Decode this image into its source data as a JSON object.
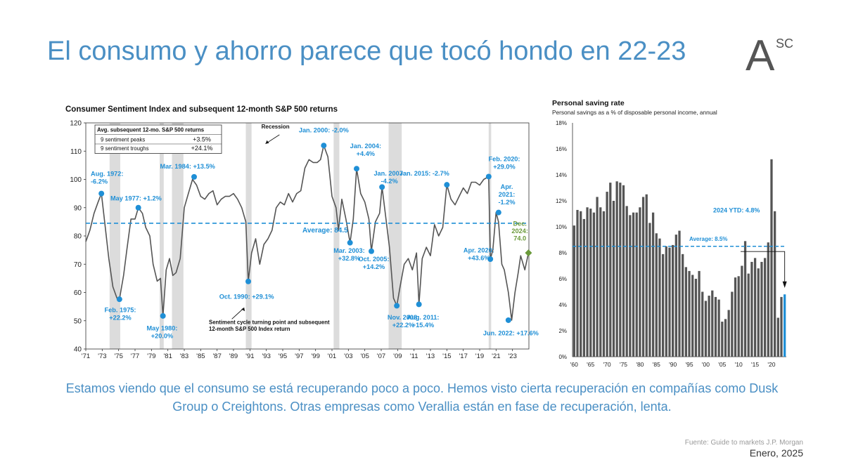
{
  "slide": {
    "title": "El consumo y ahorro parece que tocó hondo en 22-23",
    "logo": {
      "main": "A",
      "superscript": "SC"
    },
    "body": "Estamos viendo que el consumo se está recuperando poco a poco. Hemos visto cierta recuperación en compañías como Dusk Group o Creightons. Otras empresas como Verallia están en fase de recuperación, lenta.",
    "source": "Fuente: Guide to markets J.P. Morgan",
    "date": "Enero, 2025"
  },
  "colors": {
    "title": "#4a8fc4",
    "line": "#555555",
    "peak": "#1f8fd6",
    "average": "#1f8fd6",
    "recession": "#dcdcdc",
    "bars": "#555555",
    "latest_bar": "#1f8fd6",
    "dec2024": "#6a9a3a"
  },
  "chart_data": [
    {
      "type": "line",
      "title": "Consumer Sentiment Index and subsequent 12-month S&P 500 returns",
      "xlim": [
        1971,
        2025
      ],
      "ylim": [
        40,
        120
      ],
      "yticks": [
        40,
        50,
        60,
        70,
        80,
        90,
        100,
        110,
        120
      ],
      "xticks": [
        {
          "x": 1971,
          "label": "'71"
        },
        {
          "x": 1973,
          "label": "'73"
        },
        {
          "x": 1975,
          "label": "'75"
        },
        {
          "x": 1977,
          "label": "'77"
        },
        {
          "x": 1979,
          "label": "'79"
        },
        {
          "x": 1981,
          "label": "'81"
        },
        {
          "x": 1983,
          "label": "'83"
        },
        {
          "x": 1985,
          "label": "'85"
        },
        {
          "x": 1987,
          "label": "'87"
        },
        {
          "x": 1989,
          "label": "'89"
        },
        {
          "x": 1991,
          "label": "'91"
        },
        {
          "x": 1993,
          "label": "'93"
        },
        {
          "x": 1995,
          "label": "'95"
        },
        {
          "x": 1997,
          "label": "'97"
        },
        {
          "x": 1999,
          "label": "'99"
        },
        {
          "x": 2001,
          "label": "'01"
        },
        {
          "x": 2003,
          "label": "'03"
        },
        {
          "x": 2005,
          "label": "'05"
        },
        {
          "x": 2007,
          "label": "'07"
        },
        {
          "x": 2009,
          "label": "'09"
        },
        {
          "x": 2011,
          "label": "'11"
        },
        {
          "x": 2013,
          "label": "'13"
        },
        {
          "x": 2015,
          "label": "'15"
        },
        {
          "x": 2017,
          "label": "'17"
        },
        {
          "x": 2019,
          "label": "'19"
        },
        {
          "x": 2021,
          "label": "'21"
        },
        {
          "x": 2023,
          "label": "'23"
        }
      ],
      "average": {
        "value": 84.5,
        "label": "Average: 84.5"
      },
      "recessions": [
        [
          1973.9,
          1975.2
        ],
        [
          1980.0,
          1980.5
        ],
        [
          1981.5,
          1982.9
        ],
        [
          1990.5,
          1991.2
        ],
        [
          2001.2,
          2001.9
        ],
        [
          2007.9,
          2009.5
        ],
        [
          2020.1,
          2020.4
        ]
      ],
      "recession_label": "Recession",
      "legend_table": {
        "header": "Avg. subsequent 12-mo. S&P 500 returns",
        "rows": [
          {
            "label": "9 sentiment peaks",
            "value": "+3.5%"
          },
          {
            "label": "9 sentiment troughs",
            "value": "+24.1%"
          }
        ]
      },
      "footnote": [
        "Sentiment cycle turning point and subsequent",
        "12-month S&P 500 Index return"
      ],
      "series": [
        {
          "x": [
            1971.0,
            1971.5,
            1972.0,
            1972.5,
            1972.9,
            1973.3,
            1973.8,
            1974.3,
            1974.8,
            1975.1,
            1975.6,
            1976.0,
            1976.5,
            1977.0,
            1977.4,
            1977.9,
            1978.3,
            1978.8,
            1979.2,
            1979.7,
            1980.1,
            1980.4,
            1980.8,
            1981.2,
            1981.6,
            1982.0,
            1982.5,
            1983.0,
            1983.5,
            1984.0,
            1984.5,
            1985.0,
            1985.5,
            1986.0,
            1986.5,
            1987.0,
            1987.5,
            1988.0,
            1988.5,
            1989.0,
            1989.5,
            1990.0,
            1990.5,
            1990.8,
            1991.2,
            1991.7,
            1992.2,
            1992.7,
            1993.2,
            1993.7,
            1994.2,
            1994.7,
            1995.2,
            1995.7,
            1996.2,
            1996.7,
            1997.2,
            1997.7,
            1998.2,
            1998.7,
            1999.2,
            1999.6,
            2000.0,
            2000.5,
            2001.0,
            2001.5,
            2001.8,
            2002.2,
            2002.7,
            2003.2,
            2003.6,
            2004.0,
            2004.5,
            2005.0,
            2005.5,
            2005.8,
            2006.3,
            2006.8,
            2007.1,
            2007.5,
            2008.0,
            2008.5,
            2008.9,
            2009.3,
            2009.8,
            2010.3,
            2010.8,
            2011.3,
            2011.6,
            2012.0,
            2012.5,
            2013.0,
            2013.5,
            2014.0,
            2014.5,
            2015.0,
            2015.5,
            2016.0,
            2016.5,
            2017.0,
            2017.5,
            2018.0,
            2018.5,
            2019.0,
            2019.5,
            2020.1,
            2020.3,
            2020.6,
            2021.0,
            2021.3,
            2021.7,
            2022.0,
            2022.5,
            2022.9,
            2023.3,
            2023.7,
            2024.0,
            2024.5,
            2024.95
          ],
          "y": [
            78,
            82,
            88,
            92,
            95,
            85,
            72,
            62,
            58,
            57.6,
            66,
            75,
            86,
            86,
            90,
            88,
            83,
            80,
            70,
            64,
            65,
            51.7,
            68,
            72,
            66,
            67,
            72,
            90,
            95,
            100,
            98,
            94,
            93,
            95,
            96,
            91,
            93,
            94,
            94,
            95,
            93,
            90,
            85,
            64,
            74,
            79,
            70,
            77,
            79,
            82,
            90,
            92,
            91,
            95,
            92,
            95,
            96,
            104,
            107,
            106,
            106,
            107,
            112,
            108,
            94,
            90,
            82,
            93,
            86,
            77.6,
            86,
            103.8,
            95,
            92,
            86,
            74.6,
            85,
            88,
            97.3,
            88,
            76,
            58,
            55.3,
            62,
            70,
            72,
            68,
            74,
            55.8,
            72,
            76,
            73,
            84,
            80,
            83,
            98.1,
            93,
            91,
            94,
            97,
            95,
            99,
            99,
            98,
            100,
            101,
            71.8,
            75,
            88.3,
            85,
            70,
            68,
            60,
            50.2,
            60,
            67,
            73,
            68,
            74
          ]
        }
      ],
      "annotations": [
        {
          "x": 1972.9,
          "y": 95.0,
          "text": [
            "Aug. 1972:",
            "-6.2%"
          ]
        },
        {
          "x": 1975.1,
          "y": 57.6,
          "text": [
            "Feb. 1975:",
            "+22.2%"
          ]
        },
        {
          "x": 1977.4,
          "y": 90.0,
          "text": [
            "May 1977: +1.2%"
          ]
        },
        {
          "x": 1980.4,
          "y": 51.7,
          "text": [
            "May 1980:",
            "+20.0%"
          ]
        },
        {
          "x": 1984.2,
          "y": 100.9,
          "text": [
            "Mar. 1984: +13.5%"
          ]
        },
        {
          "x": 1990.8,
          "y": 63.9,
          "text": [
            "Oct. 1990: +29.1%"
          ]
        },
        {
          "x": 2000.0,
          "y": 112.0,
          "text": [
            "Jan. 2000: -2.0%"
          ]
        },
        {
          "x": 2003.2,
          "y": 77.6,
          "text": [
            "Mar. 2003:",
            "+32.8%"
          ]
        },
        {
          "x": 2004.0,
          "y": 103.8,
          "text": [
            "Jan. 2004:",
            "+4.4%"
          ]
        },
        {
          "x": 2005.8,
          "y": 74.6,
          "text": [
            "Oct. 2005:",
            "+14.2%"
          ]
        },
        {
          "x": 2007.1,
          "y": 97.3,
          "text": [
            "Jan. 2007:",
            "-4.2%"
          ]
        },
        {
          "x": 2008.9,
          "y": 55.3,
          "text": [
            "Nov. 2008:",
            "+22.2%"
          ]
        },
        {
          "x": 2011.6,
          "y": 55.8,
          "text": [
            "Aug. 2011:",
            "+15.4%"
          ]
        },
        {
          "x": 2015.0,
          "y": 98.1,
          "text": [
            "Jan. 2015: -2.7%"
          ]
        },
        {
          "x": 2020.1,
          "y": 101.0,
          "text": [
            "Feb. 2020:",
            "+29.0%"
          ]
        },
        {
          "x": 2020.3,
          "y": 71.8,
          "text": [
            "Apr. 2020:",
            "+43.6%"
          ]
        },
        {
          "x": 2021.3,
          "y": 88.3,
          "text": [
            "Apr.",
            "2021:",
            "-1.2%"
          ]
        },
        {
          "x": 2022.5,
          "y": 50.2,
          "text": [
            "Jun. 2022: +17.6%"
          ]
        }
      ],
      "latest": {
        "x": 2024.95,
        "y": 74.0,
        "text": [
          "Dec.",
          "2024:",
          "74.0"
        ]
      }
    },
    {
      "type": "bar",
      "title": "Personal saving rate",
      "subtitle": "Personal savings as a % of disposable personal income, annual",
      "ylim": [
        0,
        18
      ],
      "yticks": [
        0,
        2,
        4,
        6,
        8,
        10,
        12,
        14,
        16,
        18
      ],
      "ytick_labels": [
        "0%",
        "2%",
        "4%",
        "6%",
        "8%",
        "10%",
        "12%",
        "14%",
        "16%",
        "18%"
      ],
      "xticks": [
        {
          "x": 1960,
          "label": "'60"
        },
        {
          "x": 1965,
          "label": "'65"
        },
        {
          "x": 1970,
          "label": "'70"
        },
        {
          "x": 1975,
          "label": "'75"
        },
        {
          "x": 1980,
          "label": "'80"
        },
        {
          "x": 1985,
          "label": "'85"
        },
        {
          "x": 1990,
          "label": "'90"
        },
        {
          "x": 1995,
          "label": "'95"
        },
        {
          "x": 2000,
          "label": "'00"
        },
        {
          "x": 2005,
          "label": "'05"
        },
        {
          "x": 2010,
          "label": "'10"
        },
        {
          "x": 2015,
          "label": "'15"
        },
        {
          "x": 2020,
          "label": "'20"
        }
      ],
      "average": {
        "value": 8.5,
        "label": "Average: 8.5%"
      },
      "latest_label": "2024 YTD: 4.8%",
      "x": [
        1960,
        1961,
        1962,
        1963,
        1964,
        1965,
        1966,
        1967,
        1968,
        1969,
        1970,
        1971,
        1972,
        1973,
        1974,
        1975,
        1976,
        1977,
        1978,
        1979,
        1980,
        1981,
        1982,
        1983,
        1984,
        1985,
        1986,
        1987,
        1988,
        1989,
        1990,
        1991,
        1992,
        1993,
        1994,
        1995,
        1996,
        1997,
        1998,
        1999,
        2000,
        2001,
        2002,
        2003,
        2004,
        2005,
        2006,
        2007,
        2008,
        2009,
        2010,
        2011,
        2012,
        2013,
        2014,
        2015,
        2016,
        2017,
        2018,
        2019,
        2020,
        2021,
        2022,
        2023,
        2024
      ],
      "values": [
        10.1,
        11.3,
        11.2,
        10.6,
        11.5,
        11.4,
        11.1,
        12.3,
        11.5,
        11.2,
        12.7,
        13.4,
        12.0,
        13.5,
        13.4,
        13.2,
        11.6,
        10.9,
        11.1,
        11.1,
        11.5,
        12.3,
        12.5,
        10.3,
        11.1,
        9.5,
        9.1,
        7.9,
        8.5,
        8.4,
        8.6,
        9.4,
        9.7,
        7.9,
        6.9,
        6.6,
        6.3,
        6.0,
        6.6,
        5.0,
        4.3,
        4.7,
        5.1,
        4.6,
        4.4,
        2.7,
        2.9,
        3.6,
        5.0,
        6.1,
        6.2,
        7.0,
        8.9,
        6.4,
        7.3,
        7.6,
        6.8,
        7.3,
        7.6,
        8.8,
        15.2,
        11.2,
        3.0,
        4.6,
        4.8
      ]
    }
  ]
}
